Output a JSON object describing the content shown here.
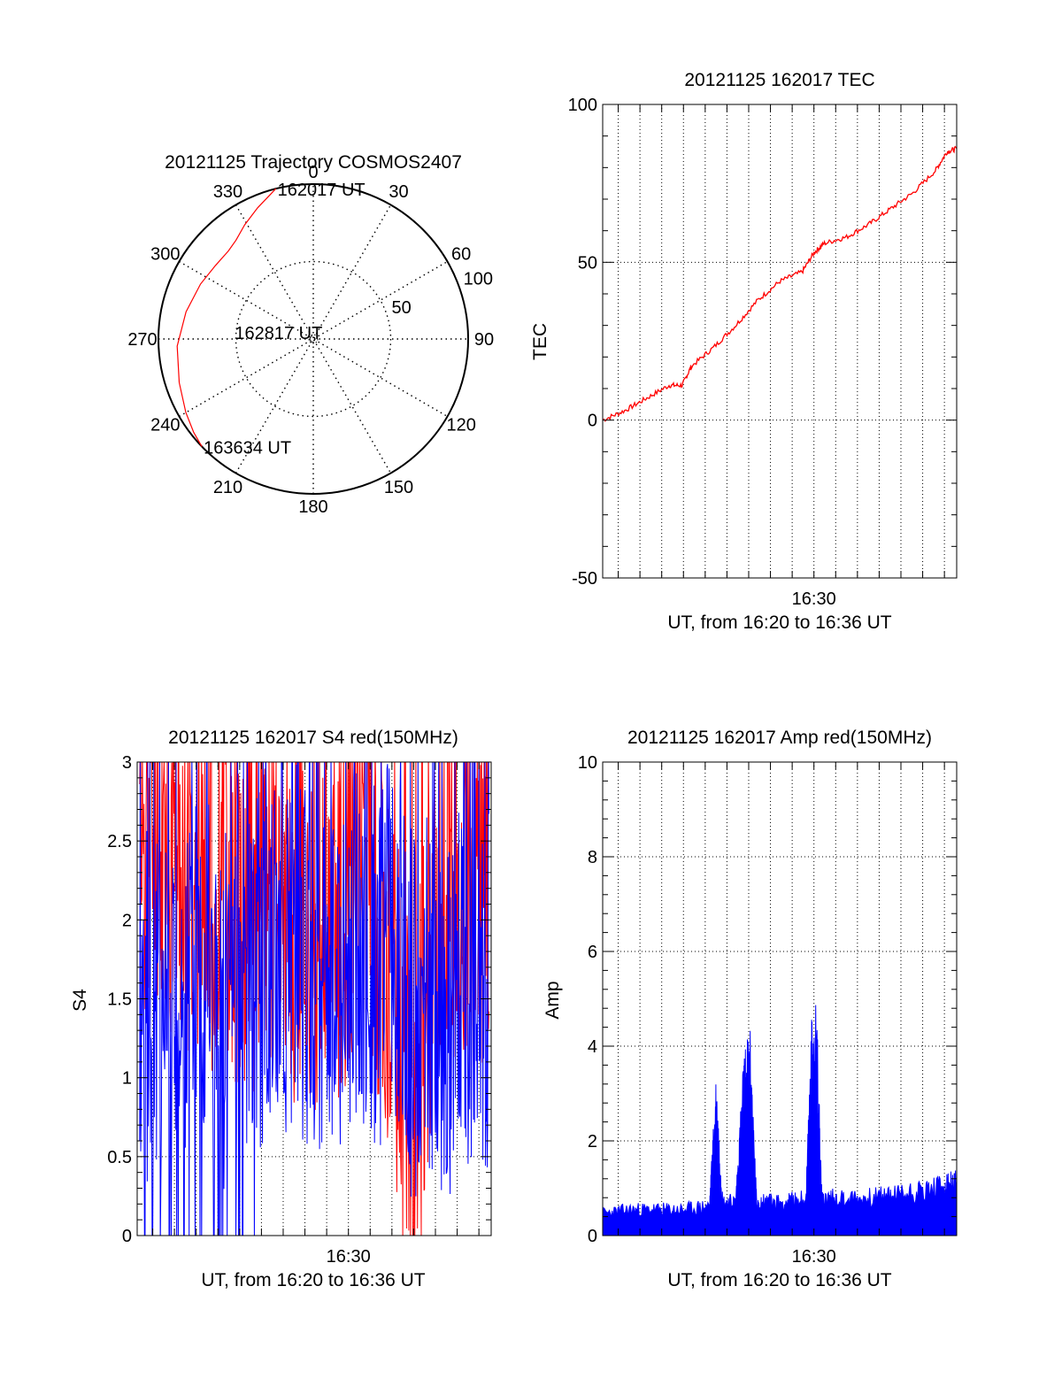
{
  "chart_data": [
    {
      "type": "polar",
      "title": "20121125 Trajectory COSMOS2407",
      "angle_ticks": [
        "0",
        "30",
        "60",
        "90",
        "120",
        "150",
        "180",
        "210",
        "240",
        "270",
        "300",
        "330"
      ],
      "radial_ticks": [
        "50",
        "100"
      ],
      "series": [
        {
          "color": "#ff0000",
          "azimuth_deg": [
            346.0,
            337.0,
            329.0,
            322.0,
            316.0,
            307.0,
            296.0,
            282.0,
            267.0,
            252.0,
            240.0,
            232.0,
            226.0
          ],
          "radius": [
            100.0,
            92.0,
            86.0,
            81.0,
            79.0,
            79.0,
            81.0,
            84.0,
            88.0,
            91.0,
            95.0,
            98.0,
            100.0
          ]
        }
      ],
      "annotations": [
        {
          "text": "162017 UT",
          "azimuth_deg": 346.0,
          "radius": 100.0
        },
        {
          "text": "162817 UT",
          "azimuth_deg": 275.0,
          "radius": 52.0
        },
        {
          "text": "163634 UT",
          "azimuth_deg": 226.0,
          "radius": 100.0
        }
      ]
    },
    {
      "type": "line",
      "title": "20121125 162017 TEC",
      "xlabel": "UT, from 16:20 to 16:36 UT",
      "ylabel": "TEC",
      "xlim": [
        16.3381,
        16.6094
      ],
      "ylim": [
        -50,
        100
      ],
      "yticks": [
        "-50",
        "0",
        "50",
        "100"
      ],
      "xticks": [
        {
          "value": 16.5,
          "label": "16:30"
        }
      ],
      "grid": true,
      "series": [
        {
          "color": "#ff0000",
          "x": [
            16.3381,
            16.355,
            16.372,
            16.389,
            16.399,
            16.406,
            16.423,
            16.44,
            16.457,
            16.474,
            16.491,
            16.5,
            16.508,
            16.525,
            16.542,
            16.559,
            16.576,
            16.593,
            16.602,
            16.6094
          ],
          "y": [
            0,
            3,
            7,
            11,
            11,
            17,
            23,
            30,
            38,
            44,
            47,
            53,
            56,
            58,
            62,
            67,
            72,
            79,
            85,
            86
          ]
        }
      ]
    },
    {
      "type": "line",
      "title": "20121125 162017 S4 red(150MHz)",
      "xlabel": "UT, from 16:20 to 16:36 UT",
      "ylabel": "S4",
      "xlim": [
        16.3381,
        16.6094
      ],
      "ylim": [
        0,
        3
      ],
      "yticks": [
        "0",
        "0.5",
        "1",
        "1.5",
        "2",
        "2.5",
        "3"
      ],
      "xticks": [
        {
          "value": 16.5,
          "label": "16:30"
        }
      ],
      "grid": true,
      "series": [
        {
          "color": "#ff0000",
          "x": [
            16.34,
            16.35,
            16.36,
            16.37,
            16.38,
            16.39,
            16.4,
            16.41,
            16.42,
            16.43,
            16.44,
            16.45,
            16.46,
            16.47,
            16.48,
            16.49,
            16.5,
            16.51,
            16.52,
            16.53,
            16.54,
            16.55,
            16.56,
            16.57,
            16.58,
            16.59,
            16.6,
            16.608
          ],
          "y": [
            2.5,
            2.6,
            2.5,
            2.4,
            2.2,
            2.3,
            2.1,
            2.2,
            2.0,
            2.1,
            2.1,
            1.9,
            2.0,
            1.9,
            2.0,
            2.0,
            2.1,
            2.2,
            1.9,
            1.6,
            1.3,
            0.55,
            1.6,
            2.0,
            2.2,
            2.3,
            2.2,
            2.1
          ]
        },
        {
          "color": "#0000ff",
          "x": [
            16.34,
            16.35,
            16.36,
            16.37,
            16.38,
            16.39,
            16.4,
            16.41,
            16.42,
            16.43,
            16.44,
            16.45,
            16.46,
            16.47,
            16.48,
            16.49,
            16.5,
            16.51,
            16.52,
            16.53,
            16.54,
            16.55,
            16.56,
            16.57,
            16.58,
            16.59,
            16.6,
            16.608
          ],
          "y": [
            1.5,
            1.4,
            1.6,
            1.5,
            1.7,
            1.8,
            1.4,
            1.6,
            1.8,
            1.7,
            1.9,
            1.7,
            1.8,
            1.6,
            1.7,
            1.6,
            1.8,
            1.7,
            1.7,
            1.8,
            1.6,
            1.4,
            1.5,
            1.3,
            1.5,
            1.6,
            1.6,
            1.5
          ]
        }
      ]
    },
    {
      "type": "area",
      "title": "20121125 162017 Amp red(150MHz)",
      "xlabel": "UT, from 16:20 to 16:36 UT",
      "ylabel": "Amp",
      "xlim": [
        16.3381,
        16.6094
      ],
      "ylim": [
        0,
        10
      ],
      "yticks": [
        "0",
        "2",
        "4",
        "6",
        "8",
        "10"
      ],
      "xticks": [
        {
          "value": 16.5,
          "label": "16:30"
        }
      ],
      "grid": true,
      "series": [
        {
          "color": "#0000ff",
          "x": [
            16.3381,
            16.36,
            16.38,
            16.4,
            16.42,
            16.425,
            16.43,
            16.44,
            16.446,
            16.451,
            16.456,
            16.465,
            16.48,
            16.494,
            16.498,
            16.502,
            16.506,
            16.52,
            16.54,
            16.56,
            16.58,
            16.6,
            16.6094
          ],
          "y": [
            0.6,
            0.7,
            0.7,
            0.7,
            0.8,
            3.5,
            0.9,
            0.9,
            3.8,
            4.5,
            0.9,
            0.9,
            0.9,
            1.0,
            4.6,
            5.0,
            1.0,
            1.0,
            1.0,
            1.1,
            1.2,
            1.3,
            1.4
          ]
        }
      ]
    }
  ]
}
